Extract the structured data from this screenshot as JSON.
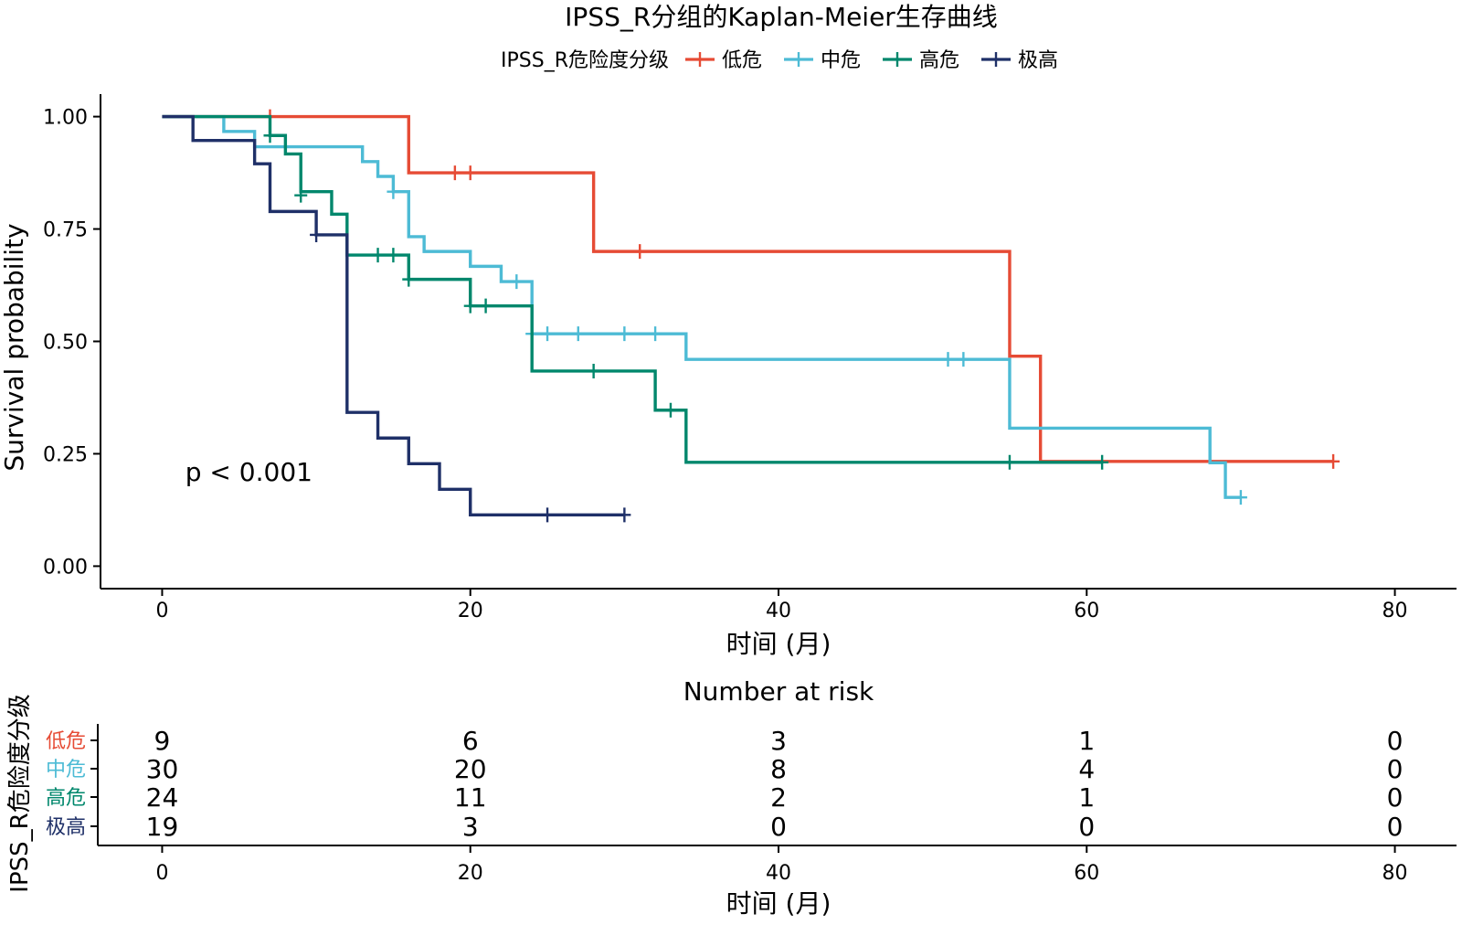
{
  "chart_data": {
    "type": "kaplan-meier",
    "title": "IPSS_R分组的Kaplan-Meier生存曲线",
    "xlabel": "时间 (月)",
    "ylabel": "Survival probability",
    "xlim": [
      -4,
      84
    ],
    "ylim": [
      -0.05,
      1.05
    ],
    "xticks": [
      0,
      20,
      40,
      60,
      80
    ],
    "yticks": [
      0,
      0.25,
      0.5,
      0.75,
      1.0
    ],
    "ytick_labels": [
      "0.00",
      "0.25",
      "0.50",
      "0.75",
      "1.00"
    ],
    "grid": false,
    "pvalue": "p < 0.001",
    "pvalue_pos": [
      1.5,
      0.19
    ],
    "legend_title": "IPSS_R危险度分级",
    "series": [
      {
        "name": "低危",
        "color": "#E64B35",
        "steps": [
          [
            0,
            1.0
          ],
          [
            16,
            0.875
          ],
          [
            28,
            0.7
          ],
          [
            55,
            0.467
          ],
          [
            57,
            0.233
          ],
          [
            76,
            0.233
          ]
        ],
        "censors": [
          [
            7,
            1.0
          ],
          [
            19,
            0.875
          ],
          [
            20,
            0.875
          ],
          [
            31,
            0.7
          ],
          [
            76,
            0.233
          ]
        ]
      },
      {
        "name": "中危",
        "color": "#4DBBD5",
        "steps": [
          [
            0,
            1.0
          ],
          [
            4,
            0.967
          ],
          [
            6,
            0.933
          ],
          [
            13,
            0.9
          ],
          [
            14,
            0.867
          ],
          [
            15,
            0.833
          ],
          [
            16,
            0.733
          ],
          [
            17,
            0.7
          ],
          [
            18,
            0.7
          ],
          [
            20,
            0.667
          ],
          [
            22,
            0.633
          ],
          [
            24,
            0.517
          ],
          [
            34,
            0.46
          ],
          [
            55,
            0.307
          ],
          [
            68,
            0.23
          ],
          [
            69,
            0.153
          ],
          [
            70,
            0.153
          ]
        ],
        "censors": [
          [
            15,
            0.833
          ],
          [
            23,
            0.633
          ],
          [
            24,
            0.517
          ],
          [
            25,
            0.517
          ],
          [
            27,
            0.517
          ],
          [
            30,
            0.517
          ],
          [
            32,
            0.517
          ],
          [
            51,
            0.46
          ],
          [
            52,
            0.46
          ],
          [
            70,
            0.153
          ]
        ]
      },
      {
        "name": "高危",
        "color": "#00876C",
        "steps": [
          [
            0,
            1.0
          ],
          [
            7,
            0.958
          ],
          [
            8,
            0.917
          ],
          [
            9,
            0.833
          ],
          [
            10,
            0.833
          ],
          [
            11,
            0.783
          ],
          [
            12,
            0.692
          ],
          [
            16,
            0.638
          ],
          [
            20,
            0.579
          ],
          [
            24,
            0.434
          ],
          [
            32,
            0.347
          ],
          [
            34,
            0.231
          ],
          [
            61,
            0.231
          ]
        ],
        "censors": [
          [
            7,
            0.958
          ],
          [
            9,
            0.825
          ],
          [
            14,
            0.692
          ],
          [
            15,
            0.692
          ],
          [
            16,
            0.638
          ],
          [
            20,
            0.579
          ],
          [
            21,
            0.579
          ],
          [
            28,
            0.434
          ],
          [
            33,
            0.347
          ],
          [
            55,
            0.231
          ],
          [
            61,
            0.231
          ]
        ]
      },
      {
        "name": "极高",
        "color": "#1F3068",
        "steps": [
          [
            0,
            1.0
          ],
          [
            2,
            0.947
          ],
          [
            6,
            0.895
          ],
          [
            7,
            0.789
          ],
          [
            10,
            0.737
          ],
          [
            12,
            0.342
          ],
          [
            14,
            0.285
          ],
          [
            16,
            0.228
          ],
          [
            18,
            0.171
          ],
          [
            20,
            0.114
          ],
          [
            30,
            0.114
          ]
        ],
        "censors": [
          [
            10,
            0.737
          ],
          [
            25,
            0.114
          ],
          [
            30,
            0.114
          ]
        ]
      }
    ],
    "risk_table": {
      "title": "Number at risk",
      "ylabel": "IPSS_R危险度分级",
      "xlabel": "时间 (月)",
      "times": [
        0,
        20,
        40,
        60,
        80
      ],
      "rows": [
        {
          "name": "低危",
          "color": "#E64B35",
          "counts": [
            9,
            6,
            3,
            1,
            0
          ]
        },
        {
          "name": "中危",
          "color": "#4DBBD5",
          "counts": [
            30,
            20,
            8,
            4,
            0
          ]
        },
        {
          "name": "高危",
          "color": "#00876C",
          "counts": [
            24,
            11,
            2,
            1,
            0
          ]
        },
        {
          "name": "极高",
          "color": "#1F3068",
          "counts": [
            19,
            3,
            0,
            0,
            0
          ]
        }
      ]
    }
  }
}
